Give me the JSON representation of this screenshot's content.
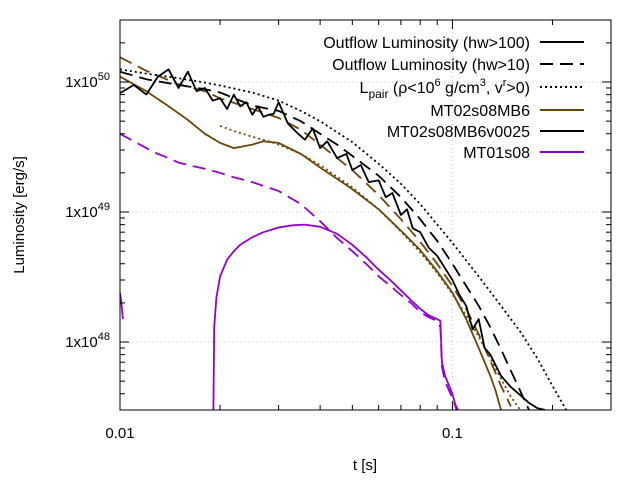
{
  "chart_data": {
    "type": "line",
    "xlabel": "t [s]",
    "ylabel": "Luminosity [erg/s]",
    "xscale": "log",
    "yscale": "log",
    "xlim": [
      0.01,
      0.3
    ],
    "ylim": [
      3e+47,
      3e+50
    ],
    "grid": true,
    "legend_position": "top-right",
    "x_ticks": [
      {
        "value": 0.01,
        "label": "0.01"
      },
      {
        "value": 0.1,
        "label": "0.1"
      }
    ],
    "y_ticks": [
      {
        "value": 1e+48,
        "label_base": "1x10",
        "label_exp": "48"
      },
      {
        "value": 1e+49,
        "label_base": "1x10",
        "label_exp": "49"
      },
      {
        "value": 1e+50,
        "label_base": "1x10",
        "label_exp": "50"
      }
    ],
    "legend": [
      {
        "label": "Outflow Luminosity (hw>100)",
        "style": "solid",
        "color": "#000000"
      },
      {
        "label": "Outflow Luminosity (hw>10)",
        "style": "dashed",
        "color": "#000000"
      },
      {
        "label_parts": {
          "main": "L",
          "sub": "pair",
          "open": " (ρ<10",
          "exp1": "6",
          "mid": " g/cm",
          "exp2": "3",
          "mid2": ", v",
          "exp3": "r",
          "close": ">0)"
        },
        "style": "dotted",
        "color": "#000000"
      },
      {
        "label": "MT02s08MB6",
        "style": "solid",
        "color": "#6b4708"
      },
      {
        "label": "MT02s08MB6v0025",
        "style": "solid",
        "color": "#000000"
      },
      {
        "label": "MT01s08",
        "style": "solid",
        "color": "#9400d3"
      }
    ],
    "series": [
      {
        "model": "MT02s08MB6",
        "quantity": "Outflow Luminosity (hw>100)",
        "color": "#6b4708",
        "style": "solid",
        "x": [
          0.01,
          0.012,
          0.014,
          0.016,
          0.018,
          0.02,
          0.022,
          0.025,
          0.027,
          0.03,
          0.035,
          0.04,
          0.05,
          0.06,
          0.07,
          0.08,
          0.09,
          0.1,
          0.11,
          0.12,
          0.13,
          0.135,
          0.14
        ],
        "y": [
          1.1e+50,
          8.5e+49,
          6.5e+49,
          5.1e+49,
          4e+49,
          3.4e+49,
          3.1e+49,
          3.3e+49,
          3.5e+49,
          3.4e+49,
          2.8e+49,
          2.2e+49,
          1.5e+49,
          1.05e+49,
          7.2e+48,
          5.1e+48,
          3.5e+48,
          2.4e+48,
          1.5e+48,
          9e+47,
          5.5e+47,
          4.2e+47,
          3e+47
        ]
      },
      {
        "model": "MT02s08MB6",
        "quantity": "Outflow Luminosity (hw>10)",
        "color": "#6b4708",
        "style": "dashed",
        "x": [
          0.01,
          0.012,
          0.015,
          0.018,
          0.02,
          0.025,
          0.03,
          0.035,
          0.04,
          0.05,
          0.06,
          0.07,
          0.08,
          0.09,
          0.1,
          0.11,
          0.12,
          0.13,
          0.14,
          0.15
        ],
        "y": [
          1.55e+50,
          1.22e+50,
          9.6e+49,
          8.5e+49,
          7.5e+49,
          6.2e+49,
          5.3e+49,
          4.3e+49,
          3.3e+49,
          2.1e+49,
          1.35e+49,
          8.8e+48,
          5.9e+48,
          4e+48,
          2.7e+48,
          1.8e+48,
          1.15e+48,
          7.2e+47,
          4.6e+47,
          3.2e+47
        ]
      },
      {
        "model": "MT02s08MB6",
        "quantity": "L_pair",
        "color": "#6b4708",
        "style": "dotted",
        "x": [
          0.02,
          0.022,
          0.025,
          0.028,
          0.03,
          0.035,
          0.04,
          0.05,
          0.06,
          0.07,
          0.08,
          0.09,
          0.1,
          0.11,
          0.12,
          0.13,
          0.14,
          0.15,
          0.16
        ],
        "y": [
          4.6e+49,
          4.2e+49,
          3.8e+49,
          3.5e+49,
          3.3e+49,
          2.8e+49,
          2.3e+49,
          1.55e+49,
          1.05e+49,
          7.1e+48,
          4.9e+48,
          3.4e+48,
          2.35e+48,
          1.6e+48,
          1.1e+48,
          7.5e+47,
          5.2e+47,
          3.8e+47,
          3e+47
        ]
      },
      {
        "model": "MT02s08MB6v0025",
        "quantity": "Outflow Luminosity (hw>100)",
        "color": "#000000",
        "style": "solid",
        "x": [
          0.01,
          0.011,
          0.012,
          0.013,
          0.014,
          0.015,
          0.016,
          0.017,
          0.018,
          0.019,
          0.02,
          0.021,
          0.022,
          0.023,
          0.024,
          0.025,
          0.026,
          0.027,
          0.028,
          0.029,
          0.03,
          0.032,
          0.034,
          0.036,
          0.038,
          0.04,
          0.042,
          0.045,
          0.048,
          0.05,
          0.053,
          0.056,
          0.06,
          0.063,
          0.066,
          0.07,
          0.073,
          0.076,
          0.08,
          0.085,
          0.09,
          0.095,
          0.1,
          0.105,
          0.11,
          0.115,
          0.12,
          0.125,
          0.13,
          0.14,
          0.15,
          0.16,
          0.17,
          0.18,
          0.19
        ],
        "y": [
          8.2e+49,
          9.5e+49,
          8e+49,
          1.1e+50,
          1.25e+50,
          9e+49,
          1.2e+50,
          8.5e+49,
          9e+49,
          7.2e+49,
          7.5e+49,
          6.2e+49,
          8e+49,
          6.5e+49,
          7e+49,
          5.6e+49,
          6.5e+49,
          5.4e+49,
          5.6e+49,
          5.7e+49,
          7e+49,
          4.8e+49,
          4.1e+49,
          3.6e+49,
          4.4e+49,
          3.1e+49,
          3.5e+49,
          2.6e+49,
          2.8e+49,
          2.1e+49,
          2.3e+49,
          1.7e+49,
          1.75e+49,
          1.3e+49,
          1.4e+49,
          9.5e+48,
          1.05e+49,
          7.5e+48,
          7e+48,
          5.3e+48,
          4.6e+48,
          3.7e+48,
          3e+48,
          2.3e+48,
          1.9e+48,
          1.25e+48,
          1.5e+48,
          9e+47,
          8e+47,
          5.5e+47,
          4.5e+47,
          3.9e+47,
          3.4e+47,
          3.1e+47,
          3e+47
        ]
      },
      {
        "model": "MT02s08MB6v0025",
        "quantity": "Outflow Luminosity (hw>10)",
        "color": "#000000",
        "style": "dashed",
        "x": [
          0.01,
          0.012,
          0.015,
          0.018,
          0.02,
          0.025,
          0.03,
          0.035,
          0.04,
          0.045,
          0.05,
          0.06,
          0.07,
          0.08,
          0.09,
          0.1,
          0.11,
          0.12,
          0.13,
          0.14,
          0.15,
          0.16,
          0.17
        ],
        "y": [
          1.2e+50,
          1.05e+50,
          9.5e+49,
          8.8e+49,
          8.3e+49,
          6.6e+49,
          6e+49,
          5e+49,
          4e+49,
          3.3e+49,
          2.7e+49,
          1.9e+49,
          1.3e+49,
          8.8e+48,
          6e+48,
          4e+48,
          2.7e+48,
          1.9e+48,
          1.3e+48,
          8.8e+47,
          6e+47,
          4.2e+47,
          3e+47
        ]
      },
      {
        "model": "MT02s08MB6v0025",
        "quantity": "L_pair",
        "color": "#000000",
        "style": "dotted",
        "x": [
          0.01,
          0.012,
          0.015,
          0.018,
          0.02,
          0.025,
          0.03,
          0.035,
          0.04,
          0.05,
          0.06,
          0.07,
          0.08,
          0.1,
          0.12,
          0.14,
          0.16,
          0.18,
          0.2,
          0.22
        ],
        "y": [
          1.25e+50,
          1.16e+50,
          1.07e+50,
          9.9e+49,
          9.4e+49,
          8.3e+49,
          7.2e+49,
          6e+49,
          5e+49,
          3.45e+49,
          2.35e+49,
          1.65e+49,
          1.15e+49,
          5.8e+48,
          3.2e+48,
          1.9e+48,
          1.2e+48,
          7.5e+47,
          4.6e+47,
          3e+47
        ]
      },
      {
        "model": "MT01s08",
        "quantity": "Outflow Luminosity (hw>100)",
        "color": "#9400d3",
        "style": "solid",
        "x": [
          0.0191,
          0.0192,
          0.0195,
          0.02,
          0.021,
          0.022,
          0.023,
          0.025,
          0.027,
          0.03,
          0.033,
          0.036,
          0.04,
          0.045,
          0.05,
          0.055,
          0.06,
          0.065,
          0.07,
          0.075,
          0.08,
          0.085,
          0.09,
          0.092,
          0.093,
          0.095,
          0.1,
          0.102,
          0.104
        ],
        "y": [
          3e+47,
          1.3e+48,
          2.2e+48,
          3.2e+48,
          4.3e+48,
          5e+48,
          5.6e+48,
          6.4e+48,
          7e+48,
          7.6e+48,
          7.9e+48,
          8e+48,
          7.7e+48,
          6.8e+48,
          5.6e+48,
          4.5e+48,
          3.6e+48,
          3e+48,
          2.5e+48,
          2.1e+48,
          1.8e+48,
          1.6e+48,
          1.5e+48,
          1.45e+48,
          7e+47,
          5.5e+47,
          4e+47,
          3.3e+47,
          3e+47
        ]
      },
      {
        "model": "MT01s08",
        "quantity": "Outflow Luminosity (hw>10)",
        "color": "#9400d3",
        "style": "dashed",
        "x": [
          0.01,
          0.011,
          0.012,
          0.013,
          0.014,
          0.015,
          0.016,
          0.018,
          0.02,
          0.022,
          0.025,
          0.03,
          0.035,
          0.04,
          0.045,
          0.05,
          0.055,
          0.06,
          0.065,
          0.07,
          0.075,
          0.08,
          0.085,
          0.09,
          0.092,
          0.093,
          0.095,
          0.1,
          0.103
        ],
        "y": [
          4e+49,
          3.5e+49,
          3.1e+49,
          2.8e+49,
          2.6e+49,
          2.4e+49,
          2.3e+49,
          2.15e+49,
          2e+49,
          1.85e+49,
          1.7e+49,
          1.45e+49,
          1.15e+49,
          8.5e+48,
          6.3e+48,
          5e+48,
          4e+48,
          3.2e+48,
          2.7e+48,
          2.3e+48,
          2e+48,
          1.7e+48,
          1.55e+48,
          1.45e+48,
          1.3e+48,
          6.5e+47,
          5e+47,
          3.7e+47,
          3e+47
        ]
      },
      {
        "model": "MT01s08",
        "quantity": "early transient",
        "color": "#9400d3",
        "style": "solid",
        "x": [
          0.01,
          0.0101,
          0.0102
        ],
        "y": [
          2.4e+48,
          2e+48,
          1.5e+48
        ]
      }
    ]
  }
}
